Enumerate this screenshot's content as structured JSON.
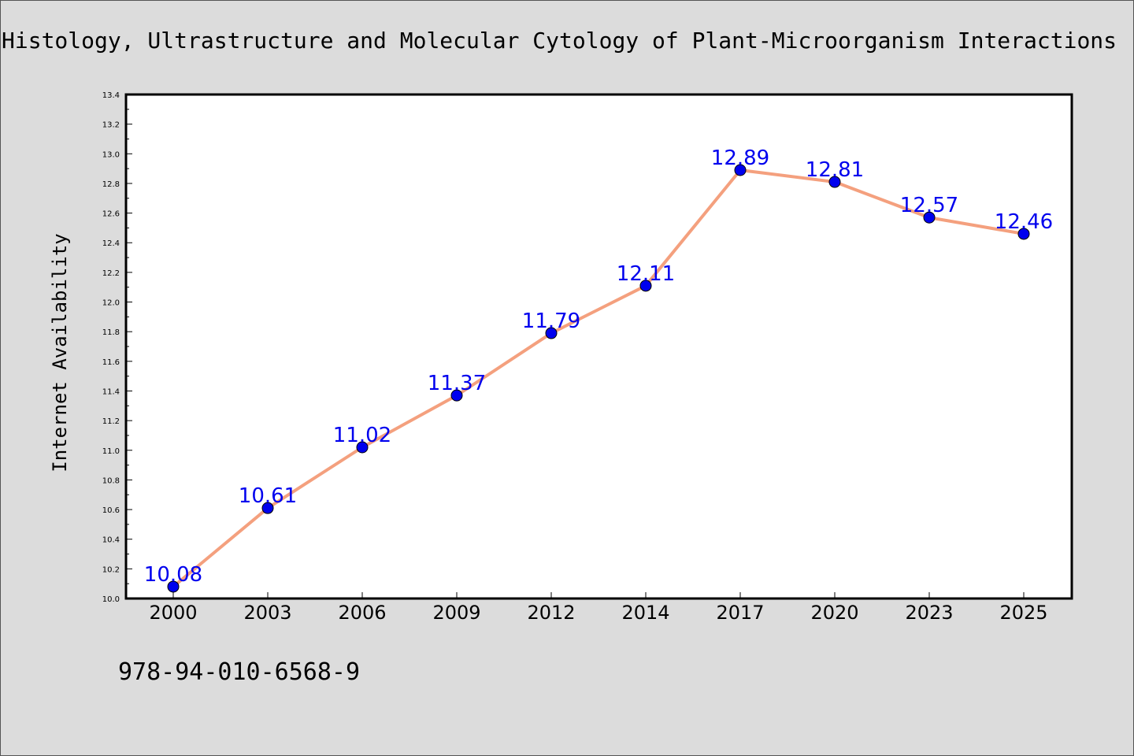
{
  "title": "Histology, Ultrastructure and Molecular Cytology of Plant-Microorganism Interactions",
  "footer_text": "978-94-010-6568-9",
  "chart_data": {
    "type": "line",
    "title": "Histology, Ultrastructure and Molecular Cytology of Plant-Microorganism Interactions",
    "xlabel": "",
    "ylabel": "Internet Availability",
    "categories": [
      "2000",
      "2003",
      "2006",
      "2009",
      "2012",
      "2014",
      "2017",
      "2020",
      "2023",
      "2025"
    ],
    "series": [
      {
        "values": [
          10.08,
          10.61,
          11.02,
          11.37,
          11.79,
          12.11,
          12.89,
          12.81,
          12.57,
          12.46
        ],
        "value_labels": [
          "10.08",
          "10.61",
          "11.02",
          "11.37",
          "11.79",
          "12.11",
          "12.89",
          "12.81",
          "12.57",
          "12.46"
        ],
        "line_color": "#f4a07e",
        "marker_color": "#0000ee",
        "label_color": "#0000ee"
      }
    ],
    "ylim": [
      10.0,
      13.4
    ],
    "y_ticks": [
      "10.0",
      "10.2",
      "10.4",
      "10.6",
      "10.8",
      "11.0",
      "11.2",
      "11.4",
      "11.6",
      "11.8",
      "12.0",
      "12.2",
      "12.4",
      "12.6",
      "12.8",
      "13.0",
      "13.2",
      "13.4"
    ],
    "y_minor_step": 0.1,
    "grid": false,
    "legend": "none",
    "colors": {
      "page_background": "#dcdcdc",
      "plot_background": "#ffffff",
      "axis": "#000000"
    }
  }
}
